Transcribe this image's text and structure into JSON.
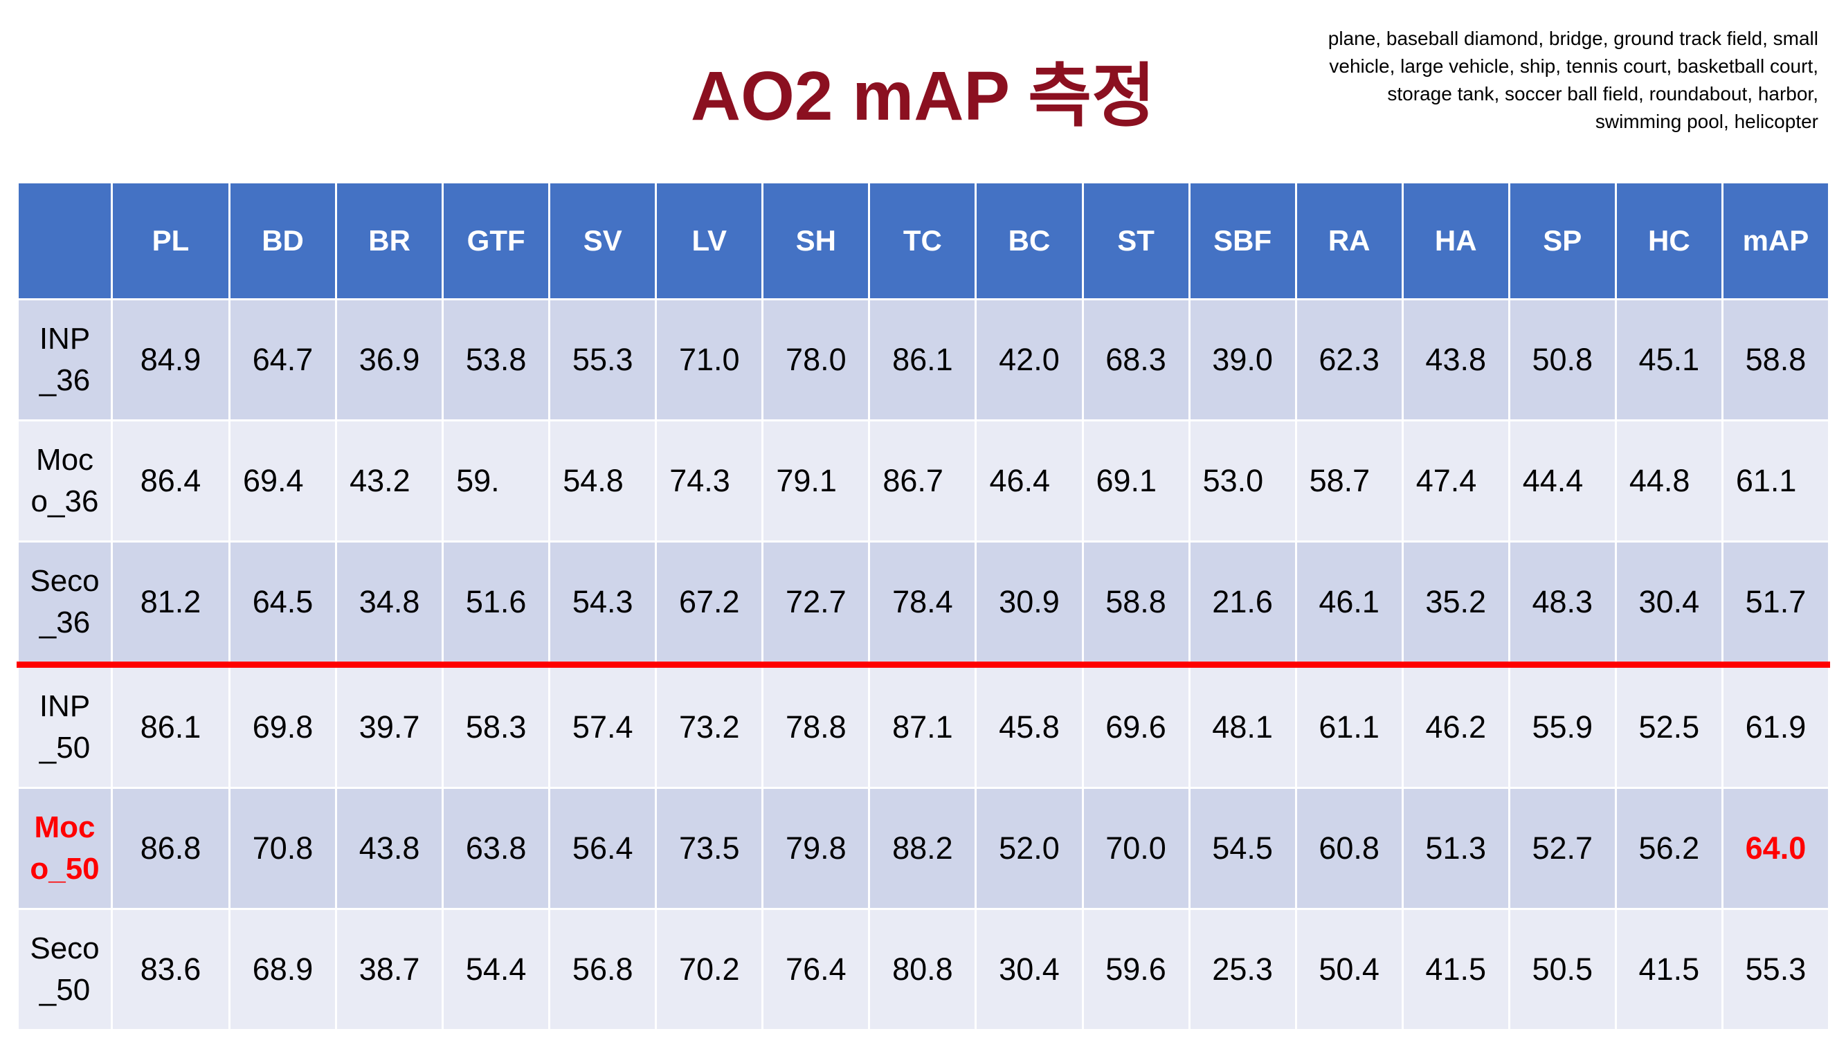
{
  "slide": {
    "title": "AO2 mAP 측정",
    "note": "plane, baseball diamond, bridge, ground track field, small vehicle, large vehicle, ship, tennis court, basketball court, storage tank, soccer ball field, roundabout, harbor, swimming pool, helicopter"
  },
  "table": {
    "headers": [
      "",
      "PL",
      "BD",
      "BR",
      "GTF",
      "SV",
      "LV",
      "SH",
      "TC",
      "BC",
      "ST",
      "SBF",
      "RA",
      "HA",
      "SP",
      "HC",
      "mAP"
    ],
    "rows": [
      {
        "label_1": "INP",
        "label_2": "_36",
        "values": [
          "84.9",
          "64.7",
          "36.9",
          "53.8",
          "55.3",
          "71.0",
          "78.0",
          "86.1",
          "42.0",
          "68.3",
          "39.0",
          "62.3",
          "43.8",
          "50.8",
          "45.1",
          "58.8"
        ]
      },
      {
        "label_1": "Moc",
        "label_2": "o_36",
        "values": [
          "86.4",
          "69.4",
          "43.2",
          "59.",
          "54.8",
          "74.3",
          "79.1",
          "86.7",
          "46.4",
          "69.1",
          "53.0",
          "58.7",
          "47.4",
          "44.4",
          "44.8",
          "61.1"
        ]
      },
      {
        "label_1": "Seco",
        "label_2": "_36",
        "values": [
          "81.2",
          "64.5",
          "34.8",
          "51.6",
          "54.3",
          "67.2",
          "72.7",
          "78.4",
          "30.9",
          "58.8",
          "21.6",
          "46.1",
          "35.2",
          "48.3",
          "30.4",
          "51.7"
        ]
      },
      {
        "label_1": "INP",
        "label_2": "_50",
        "values": [
          "86.1",
          "69.8",
          "39.7",
          "58.3",
          "57.4",
          "73.2",
          "78.8",
          "87.1",
          "45.8",
          "69.6",
          "48.1",
          "61.1",
          "46.2",
          "55.9",
          "52.5",
          "61.9"
        ]
      },
      {
        "label_1": "Moc",
        "label_2": "o_50",
        "values": [
          "86.8",
          "70.8",
          "43.8",
          "63.8",
          "56.4",
          "73.5",
          "79.8",
          "88.2",
          "52.0",
          "70.0",
          "54.5",
          "60.8",
          "51.3",
          "52.7",
          "56.2",
          "64.0"
        ]
      },
      {
        "label_1": "Seco",
        "label_2": "_50",
        "values": [
          "83.6",
          "68.9",
          "38.7",
          "54.4",
          "56.8",
          "70.2",
          "76.4",
          "80.8",
          "30.4",
          "59.6",
          "25.3",
          "50.4",
          "41.5",
          "50.5",
          "41.5",
          "55.3"
        ]
      }
    ]
  },
  "colors": {
    "title": "#8b1020",
    "header_bg": "#4472c4",
    "row_dark": "#cfd5ea",
    "row_light": "#e9ebf5",
    "highlight": "#ff0000",
    "separator": "#ff0000"
  }
}
